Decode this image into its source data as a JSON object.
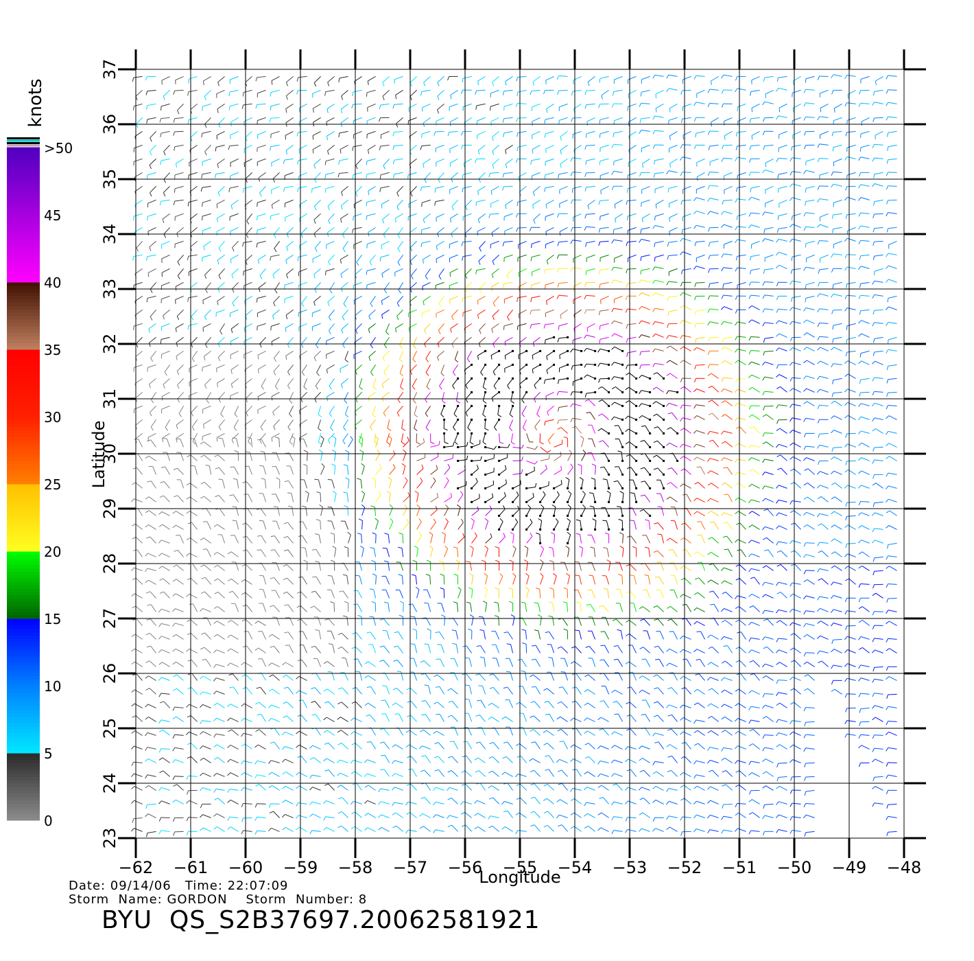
{
  "chart_data": {
    "type": "wind_barb_map",
    "xlabel": "Longitude",
    "ylabel": "Latitude",
    "xlim": [
      -62,
      -48
    ],
    "ylim": [
      23,
      37
    ],
    "x_ticks": [
      "−62",
      "−61",
      "−60",
      "−59",
      "−58",
      "−57",
      "−56",
      "−55",
      "−54",
      "−53",
      "−52",
      "−51",
      "−50",
      "−49",
      "−48"
    ],
    "y_ticks": [
      "23",
      "24",
      "25",
      "26",
      "27",
      "28",
      "29",
      "30",
      "31",
      "32",
      "33",
      "34",
      "35",
      "36",
      "37"
    ],
    "grid": true,
    "colorbar": {
      "title": "knots",
      "labels": [
        "0",
        "5",
        "10",
        "15",
        "20",
        "25",
        "30",
        "35",
        "40",
        "45",
        ">50"
      ],
      "stops": [
        {
          "value": 0,
          "color": "#8c8c8c"
        },
        {
          "value": 5,
          "color": "#2a2a2a"
        },
        {
          "value": 5,
          "color": "#00e8ff"
        },
        {
          "value": 10,
          "color": "#0080ff"
        },
        {
          "value": 15,
          "color": "#0000ff"
        },
        {
          "value": 15,
          "color": "#006400"
        },
        {
          "value": 20,
          "color": "#00ff00"
        },
        {
          "value": 20,
          "color": "#ffff20"
        },
        {
          "value": 25,
          "color": "#ffc000"
        },
        {
          "value": 25,
          "color": "#ff8000"
        },
        {
          "value": 30,
          "color": "#ff2000"
        },
        {
          "value": 35,
          "color": "#ff0000"
        },
        {
          "value": 35,
          "color": "#c08060"
        },
        {
          "value": 40,
          "color": "#401000"
        },
        {
          "value": 40,
          "color": "#ff00ff"
        },
        {
          "value": 50,
          "color": "#5000c0"
        }
      ]
    },
    "storm_center": {
      "lon": -54.3,
      "lat": 30.3
    }
  },
  "footer": {
    "line1": "Date: 09/14/06   Time: 22:07:09",
    "line2": "Storm  Name: GORDON    Storm  Number: 8",
    "line3": "BYU  QS_S2B37697.20062581921"
  }
}
